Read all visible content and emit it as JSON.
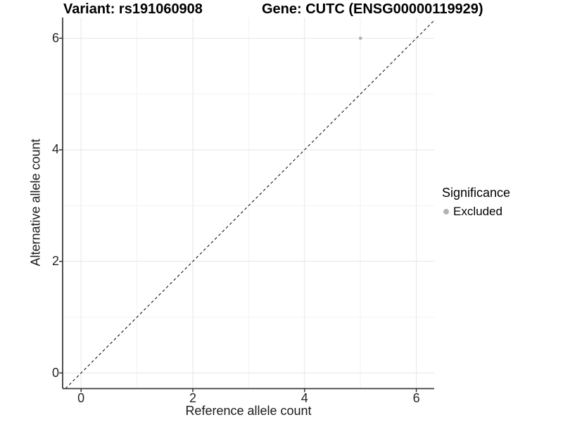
{
  "chart_data": {
    "type": "scatter",
    "title_left": "Variant: rs191060908",
    "title_right": "Gene: CUTC (ENSG00000119929)",
    "xlabel": "Reference allele count",
    "ylabel": "Alternative allele count",
    "x_ticks": [
      0,
      2,
      4,
      6
    ],
    "y_ticks": [
      0,
      2,
      4,
      6
    ],
    "x_minor_ticks": [
      1,
      3,
      5
    ],
    "y_minor_ticks": [
      1,
      3,
      5
    ],
    "xlim": [
      -0.33,
      6.32
    ],
    "ylim": [
      -0.28,
      6.37
    ],
    "grid": true,
    "reference_line": {
      "style": "dashed",
      "slope": 1,
      "intercept": 0,
      "color": "#000000"
    },
    "series": [
      {
        "name": "Excluded",
        "color": "#b3b3b3",
        "point_radius": 2.4,
        "points": [
          {
            "x": 5,
            "y": 6
          }
        ]
      }
    ],
    "legend": {
      "title": "Significance",
      "position": "right",
      "items": [
        {
          "label": "Excluded",
          "color": "#b3b3b3"
        }
      ]
    },
    "colors": {
      "background": "#ffffff",
      "grid_major": "#e6e6e6",
      "grid_minor": "#f2f2f2",
      "axis_line": "#3c3c3c",
      "tick_mark": "#333333",
      "tick_text": "#262626"
    }
  }
}
